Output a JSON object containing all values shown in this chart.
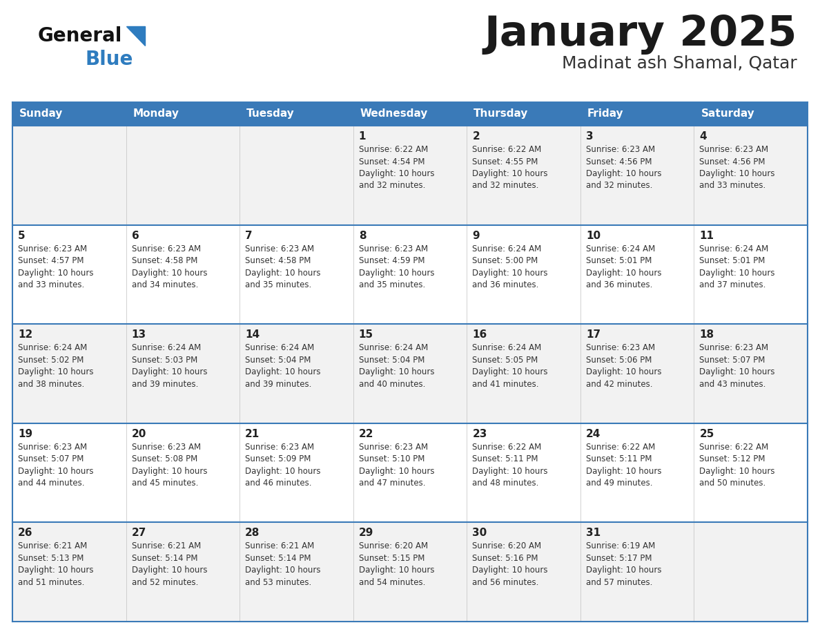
{
  "title": "January 2025",
  "subtitle": "Madinat ash Shamal, Qatar",
  "days_of_week": [
    "Sunday",
    "Monday",
    "Tuesday",
    "Wednesday",
    "Thursday",
    "Friday",
    "Saturday"
  ],
  "header_bg": "#3a7ab8",
  "header_text": "#ffffff",
  "row_bg_odd": "#f2f2f2",
  "row_bg_even": "#ffffff",
  "border_color": "#3a7ab8",
  "day_number_color": "#222222",
  "cell_text_color": "#333333",
  "title_color": "#1a1a1a",
  "subtitle_color": "#333333",
  "logo_general_color": "#111111",
  "logo_blue_color": "#2e7cbf",
  "logo_triangle_color": "#2e7cbf",
  "weeks": [
    [
      {
        "day": null,
        "info": null
      },
      {
        "day": null,
        "info": null
      },
      {
        "day": null,
        "info": null
      },
      {
        "day": 1,
        "info": "Sunrise: 6:22 AM\nSunset: 4:54 PM\nDaylight: 10 hours\nand 32 minutes."
      },
      {
        "day": 2,
        "info": "Sunrise: 6:22 AM\nSunset: 4:55 PM\nDaylight: 10 hours\nand 32 minutes."
      },
      {
        "day": 3,
        "info": "Sunrise: 6:23 AM\nSunset: 4:56 PM\nDaylight: 10 hours\nand 32 minutes."
      },
      {
        "day": 4,
        "info": "Sunrise: 6:23 AM\nSunset: 4:56 PM\nDaylight: 10 hours\nand 33 minutes."
      }
    ],
    [
      {
        "day": 5,
        "info": "Sunrise: 6:23 AM\nSunset: 4:57 PM\nDaylight: 10 hours\nand 33 minutes."
      },
      {
        "day": 6,
        "info": "Sunrise: 6:23 AM\nSunset: 4:58 PM\nDaylight: 10 hours\nand 34 minutes."
      },
      {
        "day": 7,
        "info": "Sunrise: 6:23 AM\nSunset: 4:58 PM\nDaylight: 10 hours\nand 35 minutes."
      },
      {
        "day": 8,
        "info": "Sunrise: 6:23 AM\nSunset: 4:59 PM\nDaylight: 10 hours\nand 35 minutes."
      },
      {
        "day": 9,
        "info": "Sunrise: 6:24 AM\nSunset: 5:00 PM\nDaylight: 10 hours\nand 36 minutes."
      },
      {
        "day": 10,
        "info": "Sunrise: 6:24 AM\nSunset: 5:01 PM\nDaylight: 10 hours\nand 36 minutes."
      },
      {
        "day": 11,
        "info": "Sunrise: 6:24 AM\nSunset: 5:01 PM\nDaylight: 10 hours\nand 37 minutes."
      }
    ],
    [
      {
        "day": 12,
        "info": "Sunrise: 6:24 AM\nSunset: 5:02 PM\nDaylight: 10 hours\nand 38 minutes."
      },
      {
        "day": 13,
        "info": "Sunrise: 6:24 AM\nSunset: 5:03 PM\nDaylight: 10 hours\nand 39 minutes."
      },
      {
        "day": 14,
        "info": "Sunrise: 6:24 AM\nSunset: 5:04 PM\nDaylight: 10 hours\nand 39 minutes."
      },
      {
        "day": 15,
        "info": "Sunrise: 6:24 AM\nSunset: 5:04 PM\nDaylight: 10 hours\nand 40 minutes."
      },
      {
        "day": 16,
        "info": "Sunrise: 6:24 AM\nSunset: 5:05 PM\nDaylight: 10 hours\nand 41 minutes."
      },
      {
        "day": 17,
        "info": "Sunrise: 6:23 AM\nSunset: 5:06 PM\nDaylight: 10 hours\nand 42 minutes."
      },
      {
        "day": 18,
        "info": "Sunrise: 6:23 AM\nSunset: 5:07 PM\nDaylight: 10 hours\nand 43 minutes."
      }
    ],
    [
      {
        "day": 19,
        "info": "Sunrise: 6:23 AM\nSunset: 5:07 PM\nDaylight: 10 hours\nand 44 minutes."
      },
      {
        "day": 20,
        "info": "Sunrise: 6:23 AM\nSunset: 5:08 PM\nDaylight: 10 hours\nand 45 minutes."
      },
      {
        "day": 21,
        "info": "Sunrise: 6:23 AM\nSunset: 5:09 PM\nDaylight: 10 hours\nand 46 minutes."
      },
      {
        "day": 22,
        "info": "Sunrise: 6:23 AM\nSunset: 5:10 PM\nDaylight: 10 hours\nand 47 minutes."
      },
      {
        "day": 23,
        "info": "Sunrise: 6:22 AM\nSunset: 5:11 PM\nDaylight: 10 hours\nand 48 minutes."
      },
      {
        "day": 24,
        "info": "Sunrise: 6:22 AM\nSunset: 5:11 PM\nDaylight: 10 hours\nand 49 minutes."
      },
      {
        "day": 25,
        "info": "Sunrise: 6:22 AM\nSunset: 5:12 PM\nDaylight: 10 hours\nand 50 minutes."
      }
    ],
    [
      {
        "day": 26,
        "info": "Sunrise: 6:21 AM\nSunset: 5:13 PM\nDaylight: 10 hours\nand 51 minutes."
      },
      {
        "day": 27,
        "info": "Sunrise: 6:21 AM\nSunset: 5:14 PM\nDaylight: 10 hours\nand 52 minutes."
      },
      {
        "day": 28,
        "info": "Sunrise: 6:21 AM\nSunset: 5:14 PM\nDaylight: 10 hours\nand 53 minutes."
      },
      {
        "day": 29,
        "info": "Sunrise: 6:20 AM\nSunset: 5:15 PM\nDaylight: 10 hours\nand 54 minutes."
      },
      {
        "day": 30,
        "info": "Sunrise: 6:20 AM\nSunset: 5:16 PM\nDaylight: 10 hours\nand 56 minutes."
      },
      {
        "day": 31,
        "info": "Sunrise: 6:19 AM\nSunset: 5:17 PM\nDaylight: 10 hours\nand 57 minutes."
      },
      {
        "day": null,
        "info": null
      }
    ]
  ]
}
